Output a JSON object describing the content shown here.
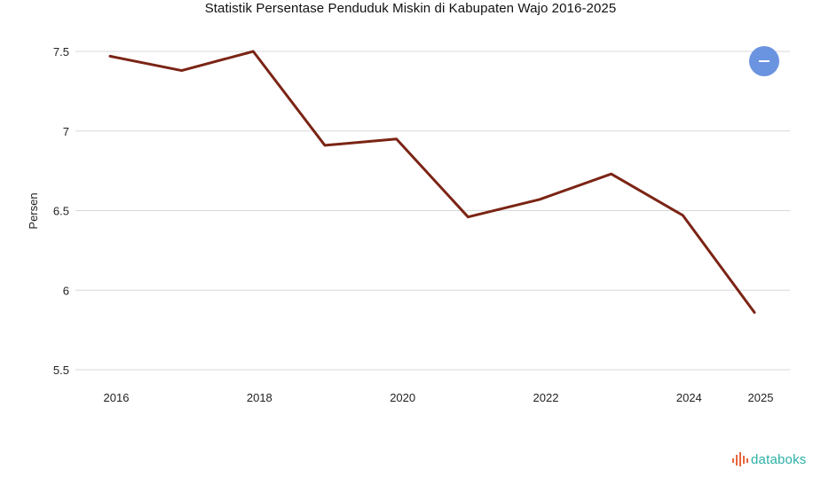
{
  "chart_data": {
    "type": "line",
    "title": "Statistik Persentase Penduduk Miskin di Kabupaten Wajo 2016-2025",
    "ylabel": "Persen",
    "xlabel": "",
    "ylim": [
      5.5,
      7.5
    ],
    "y_ticks": [
      "5.5",
      "6",
      "6.5",
      "7",
      "7.5"
    ],
    "y_tick_values": [
      5.5,
      6,
      6.5,
      7,
      7.5
    ],
    "x_ticks": [
      "2016",
      "2018",
      "2020",
      "2022",
      "2024",
      "2025"
    ],
    "x_tick_values": [
      2016,
      2018,
      2020,
      2022,
      2024,
      2025
    ],
    "xlim": [
      2016,
      2025
    ],
    "grid": true,
    "series": [
      {
        "color": "#7b2415",
        "x": [
          2016,
          2017,
          2018,
          2019,
          2020,
          2021,
          2022,
          2023,
          2024,
          2025
        ],
        "values": [
          7.47,
          7.38,
          7.5,
          6.91,
          6.95,
          6.46,
          6.57,
          6.73,
          6.47,
          5.86
        ]
      }
    ]
  },
  "zoom_button": {
    "icon": "minus-icon",
    "color": "#6a94e0"
  },
  "brand": {
    "text": "databoks",
    "color": "#2ab0a6",
    "icon": "bar-logo-icon",
    "icon_color": "#e8663d"
  }
}
